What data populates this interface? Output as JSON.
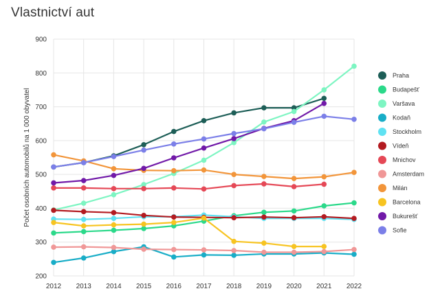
{
  "chart_data": {
    "type": "line",
    "title": "Vlastnictví aut",
    "xlabel": "",
    "ylabel": "Počet osobních automobilů na 1 000 obyvatel",
    "x": [
      "2012",
      "2013",
      "2014",
      "2015",
      "2016",
      "2017",
      "2018",
      "2019",
      "2020",
      "2021",
      "2022"
    ],
    "ylim": [
      200,
      900
    ],
    "yticks": [
      200,
      300,
      400,
      500,
      600,
      700,
      800,
      900
    ],
    "grid": true,
    "legend_position": "right",
    "series": [
      {
        "name": "Praha",
        "color": "#1d5e57",
        "values": [
          522,
          535,
          555,
          588,
          627,
          659,
          682,
          697,
          697,
          725,
          null
        ]
      },
      {
        "name": "Budapešť",
        "color": "#2bd98a",
        "values": [
          327,
          331,
          335,
          340,
          348,
          362,
          378,
          388,
          392,
          407,
          416
        ]
      },
      {
        "name": "Varšava",
        "color": "#7df5c2",
        "values": [
          395,
          415,
          440,
          470,
          503,
          542,
          594,
          655,
          686,
          750,
          820
        ]
      },
      {
        "name": "Kodaň",
        "color": "#18adc7",
        "values": [
          240,
          253,
          272,
          286,
          256,
          262,
          261,
          265,
          265,
          268,
          264
        ]
      },
      {
        "name": "Stockholm",
        "color": "#5fe2f2",
        "values": [
          368,
          367,
          370,
          375,
          375,
          380,
          375,
          370,
          370,
          370,
          367
        ]
      },
      {
        "name": "Vídeň",
        "color": "#b31b21",
        "values": [
          394,
          390,
          387,
          379,
          374,
          373,
          372,
          374,
          372,
          375,
          370
        ]
      },
      {
        "name": "Mnichov",
        "color": "#e54856",
        "values": [
          460,
          460,
          458,
          458,
          460,
          457,
          467,
          472,
          464,
          471,
          null
        ]
      },
      {
        "name": "Amsterdam",
        "color": "#f09797",
        "values": [
          285,
          286,
          284,
          279,
          278,
          277,
          275,
          270,
          270,
          272,
          278
        ]
      },
      {
        "name": "Milán",
        "color": "#f2953a",
        "values": [
          558,
          540,
          517,
          512,
          511,
          513,
          500,
          494,
          488,
          493,
          506
        ]
      },
      {
        "name": "Barcelona",
        "color": "#f7c421",
        "values": [
          358,
          348,
          351,
          353,
          358,
          371,
          302,
          297,
          287,
          287,
          null
        ]
      },
      {
        "name": "Bukurešť",
        "color": "#7119a8",
        "values": [
          475,
          482,
          497,
          518,
          549,
          578,
          606,
          636,
          659,
          710,
          null
        ]
      },
      {
        "name": "Sofie",
        "color": "#7b7fe8",
        "values": [
          522,
          535,
          553,
          572,
          590,
          605,
          621,
          635,
          654,
          672,
          663
        ]
      }
    ]
  }
}
